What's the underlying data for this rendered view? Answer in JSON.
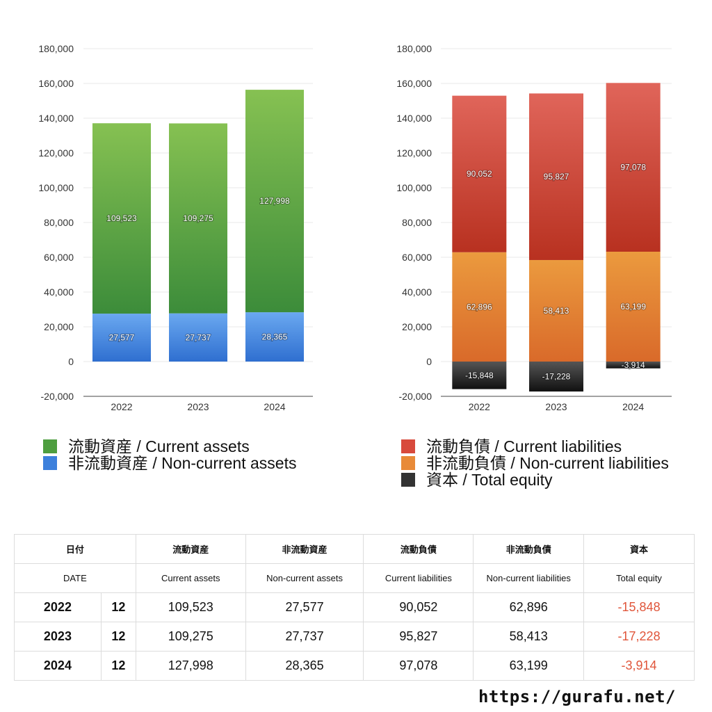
{
  "chart_data": [
    {
      "type": "bar",
      "stacked": true,
      "categories": [
        "2022",
        "2023",
        "2024"
      ],
      "series": [
        {
          "name": "非流動資産 / Non-current assets",
          "values": [
            27577,
            27737,
            28365
          ],
          "value_labels": [
            "27,577",
            "27,737",
            "28,365"
          ],
          "color_top": "#6aa8f0",
          "color_bottom": "#2f6fd0"
        },
        {
          "name": "流動資産 / Current assets",
          "values": [
            109523,
            109275,
            127998
          ],
          "value_labels": [
            "109,523",
            "109,275",
            "127,998"
          ],
          "color_top": "#86c152",
          "color_bottom": "#3c8c3a"
        }
      ],
      "ylim": [
        -20000,
        180000
      ],
      "yticks": [
        -20000,
        0,
        20000,
        40000,
        60000,
        80000,
        100000,
        120000,
        140000,
        160000,
        180000
      ],
      "ytick_labels": [
        "-20,000",
        "0",
        "20,000",
        "40,000",
        "60,000",
        "80,000",
        "100,000",
        "120,000",
        "140,000",
        "160,000",
        "180,000"
      ],
      "grid": true,
      "legend": [
        "流動資産 / Current assets",
        "非流動資産 / Non-current assets"
      ],
      "legend_colors": [
        "#4e9e3f",
        "#3d80dc"
      ]
    },
    {
      "type": "bar",
      "stacked": true,
      "categories": [
        "2022",
        "2023",
        "2024"
      ],
      "series": [
        {
          "name": "資本 / Total equity",
          "values": [
            -15848,
            -17228,
            -3914
          ],
          "value_labels": [
            "-15,848",
            "-17,228",
            "-3,914"
          ],
          "color_top": "#555555",
          "color_bottom": "#111111"
        },
        {
          "name": "非流動負債 / Non-current liabilities",
          "values": [
            62896,
            58413,
            63199
          ],
          "value_labels": [
            "62,896",
            "58,413",
            "63,199"
          ],
          "color_top": "#eb9a3e",
          "color_bottom": "#d96a2a"
        },
        {
          "name": "流動負債 / Current liabilities",
          "values": [
            90052,
            95827,
            97078
          ],
          "value_labels": [
            "90,052",
            "95,827",
            "97,078"
          ],
          "color_top": "#e0655a",
          "color_bottom": "#b83120"
        }
      ],
      "ylim": [
        -20000,
        180000
      ],
      "yticks": [
        -20000,
        0,
        20000,
        40000,
        60000,
        80000,
        100000,
        120000,
        140000,
        160000,
        180000
      ],
      "ytick_labels": [
        "-20,000",
        "0",
        "20,000",
        "40,000",
        "60,000",
        "80,000",
        "100,000",
        "120,000",
        "140,000",
        "160,000",
        "180,000"
      ],
      "grid": true,
      "legend": [
        "流動負債 / Current liabilities",
        "非流動負債 / Non-current liabilities",
        "資本 / Total equity"
      ],
      "legend_colors": [
        "#d84a3c",
        "#e88a38",
        "#333333"
      ]
    }
  ],
  "table": {
    "headers_jp": [
      "日付",
      "流動資産",
      "非流動資産",
      "流動負債",
      "非流動負債",
      "資本"
    ],
    "headers_en": [
      "DATE",
      "Current assets",
      "Non-current assets",
      "Current liabilities",
      "Non-current liabilities",
      "Total equity"
    ],
    "rows": [
      {
        "year": "2022",
        "month": "12",
        "current_assets": "109,523",
        "noncurrent_assets": "27,577",
        "current_liabilities": "90,052",
        "noncurrent_liabilities": "62,896",
        "total_equity": "-15,848"
      },
      {
        "year": "2023",
        "month": "12",
        "current_assets": "109,275",
        "noncurrent_assets": "27,737",
        "current_liabilities": "95,827",
        "noncurrent_liabilities": "58,413",
        "total_equity": "-17,228"
      },
      {
        "year": "2024",
        "month": "12",
        "current_assets": "127,998",
        "noncurrent_assets": "28,365",
        "current_liabilities": "97,078",
        "noncurrent_liabilities": "63,199",
        "total_equity": "-3,914"
      }
    ],
    "negative_color": "#e0553a"
  },
  "footer": {
    "url": "https://gurafu.net/"
  }
}
